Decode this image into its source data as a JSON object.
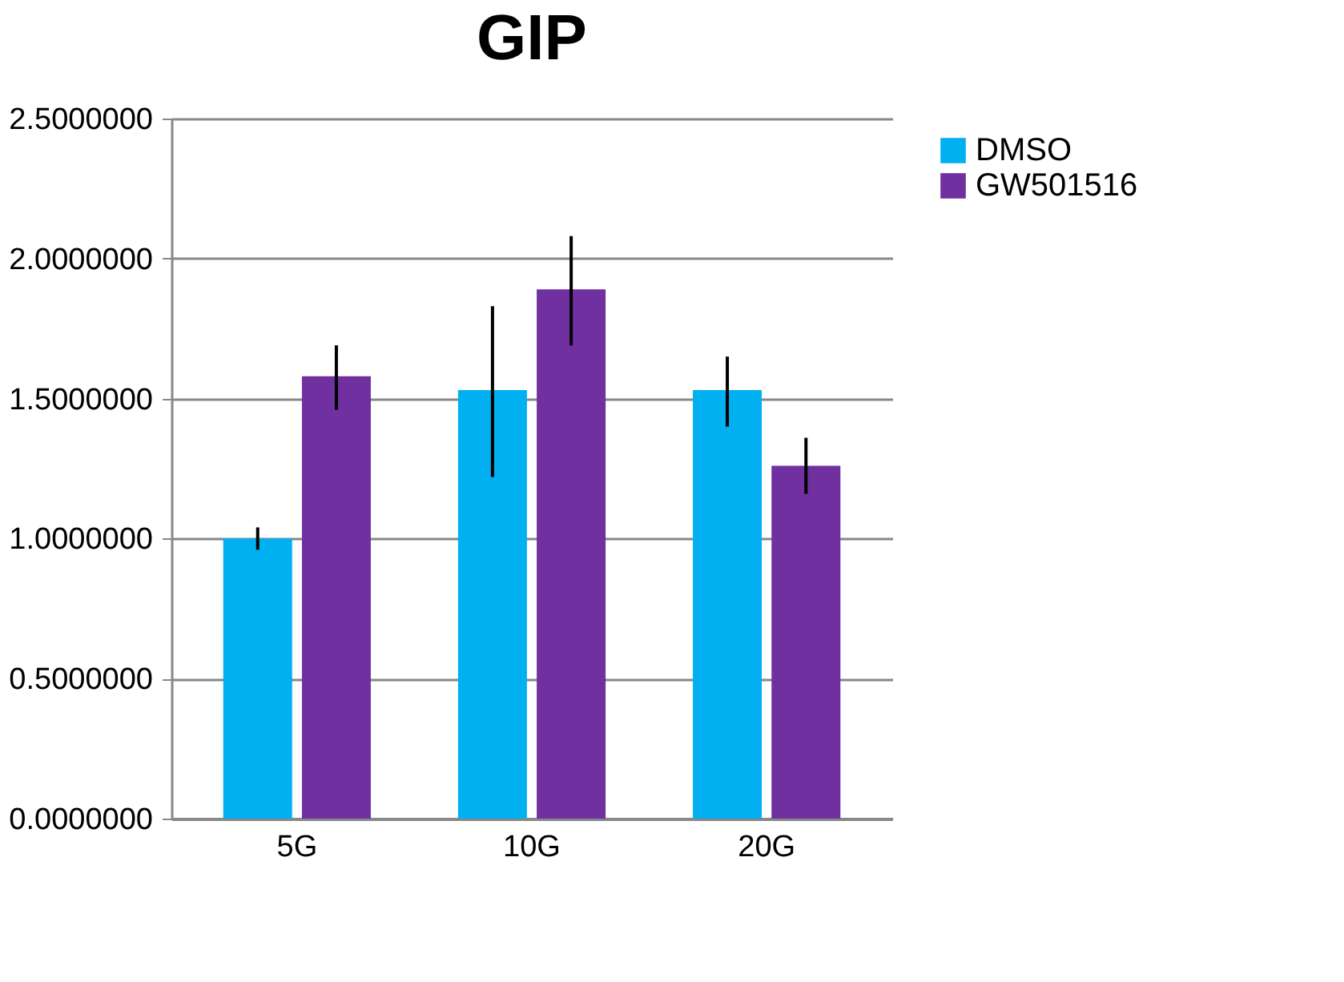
{
  "chart_data": {
    "type": "bar",
    "title": "GIP",
    "categories": [
      "5G",
      "10G",
      "20G"
    ],
    "series": [
      {
        "name": "DMSO",
        "color": "#00b0f0",
        "values": [
          1.0,
          1.53,
          1.53
        ],
        "errors": [
          [
            0.96,
            1.04
          ],
          [
            1.22,
            1.83
          ],
          [
            1.4,
            1.65
          ]
        ]
      },
      {
        "name": "GW501516",
        "color": "#7030a0",
        "values": [
          1.58,
          1.89,
          1.26
        ],
        "errors": [
          [
            1.46,
            1.69
          ],
          [
            1.69,
            2.08
          ],
          [
            1.16,
            1.36
          ]
        ]
      }
    ],
    "ylim": [
      0,
      2.5
    ],
    "yticks": [
      {
        "value": 0,
        "label": "0.0000000"
      },
      {
        "value": 0.5,
        "label": "0.5000000"
      },
      {
        "value": 1,
        "label": "1.0000000"
      },
      {
        "value": 1.5,
        "label": "1.5000000"
      },
      {
        "value": 2,
        "label": "2.0000000"
      },
      {
        "value": 2.5,
        "label": "2.5000000"
      }
    ],
    "grid": "y",
    "legend": "right"
  }
}
